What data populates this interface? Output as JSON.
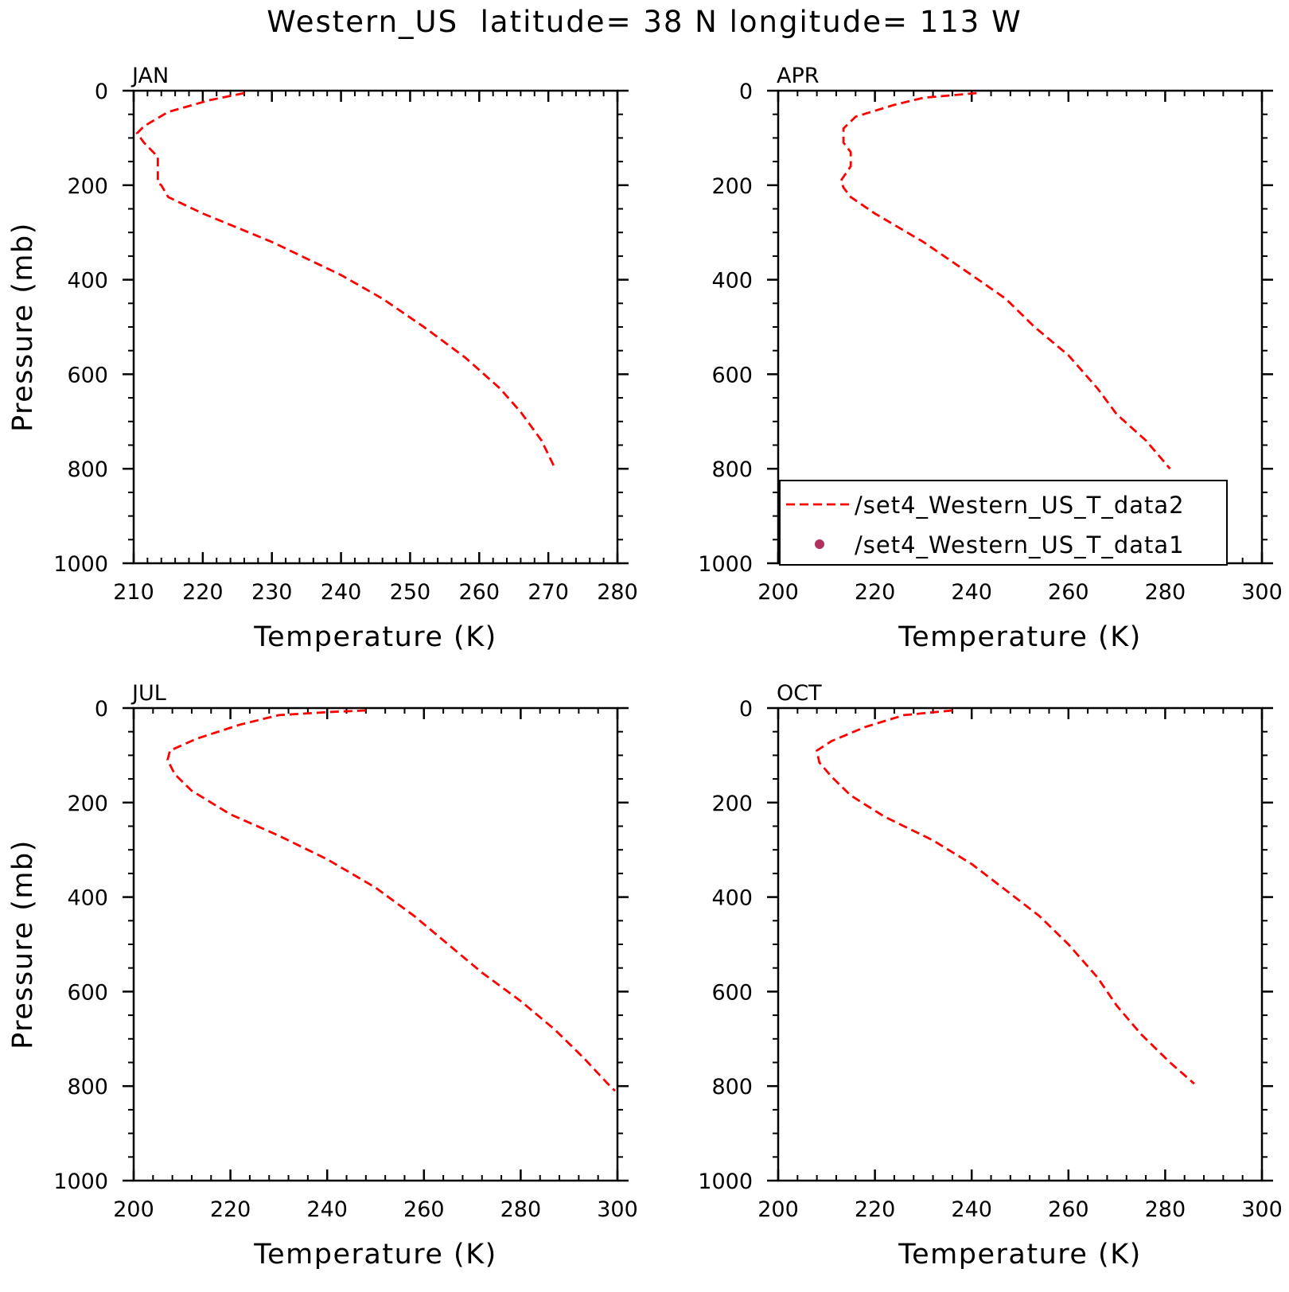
{
  "figure_title": "Western_US  latitude= 38 N longitude= 113 W",
  "chart_data": [
    {
      "type": "line",
      "title": "JAN",
      "xlabel": "Temperature (K)",
      "ylabel": "Pressure (mb)",
      "xlim": [
        210,
        280
      ],
      "ylim": [
        0,
        1000
      ],
      "y_inverted": true,
      "xticks": [
        210,
        220,
        230,
        240,
        250,
        260,
        270,
        280
      ],
      "yticks": [
        0,
        200,
        400,
        600,
        800,
        1000
      ],
      "series": [
        {
          "name": "/set4_Western_US_T_data2",
          "style": "dashed",
          "color": "#ff0000",
          "points": [
            [
              226,
              5
            ],
            [
              221,
              20
            ],
            [
              215,
              45
            ],
            [
              211.5,
              75
            ],
            [
              210.5,
              90
            ],
            [
              211.5,
              110
            ],
            [
              213.5,
              140
            ],
            [
              213.5,
              195
            ],
            [
              214,
              200
            ],
            [
              215,
              225
            ],
            [
              220,
              260
            ],
            [
              230,
              320
            ],
            [
              240,
              390
            ],
            [
              246,
              440
            ],
            [
              252,
              500
            ],
            [
              258,
              565
            ],
            [
              263,
              630
            ],
            [
              266,
              680
            ],
            [
              269,
              740
            ],
            [
              271,
              800
            ]
          ]
        }
      ]
    },
    {
      "type": "line",
      "title": "APR",
      "xlabel": "Temperature (K)",
      "ylabel": "",
      "xlim": [
        200,
        300
      ],
      "ylim": [
        0,
        1000
      ],
      "y_inverted": true,
      "xticks": [
        200,
        220,
        240,
        260,
        280,
        300
      ],
      "yticks": [
        0,
        200,
        400,
        600,
        800,
        1000
      ],
      "legend_position": "bottom-right",
      "series": [
        {
          "name": "/set4_Western_US_T_data2",
          "style": "dashed",
          "color": "#ff0000",
          "points": [
            [
              241,
              5
            ],
            [
              230,
              15
            ],
            [
              224,
              30
            ],
            [
              216,
              55
            ],
            [
              213.5,
              80
            ],
            [
              213.5,
              110
            ],
            [
              215,
              130
            ],
            [
              215,
              160
            ],
            [
              213,
              190
            ],
            [
              213.5,
              205
            ],
            [
              215,
              225
            ],
            [
              220,
              260
            ],
            [
              230,
              320
            ],
            [
              240,
              390
            ],
            [
              247,
              440
            ],
            [
              253,
              500
            ],
            [
              260,
              560
            ],
            [
              266,
              630
            ],
            [
              270,
              685
            ],
            [
              276,
              740
            ],
            [
              281,
              800
            ]
          ]
        },
        {
          "name": "/set4_Western_US_T_data1",
          "style": "marker",
          "color": "#b03060",
          "points": []
        }
      ]
    },
    {
      "type": "line",
      "title": "JUL",
      "xlabel": "Temperature (K)",
      "ylabel": "Pressure (mb)",
      "xlim": [
        200,
        300
      ],
      "ylim": [
        0,
        1000
      ],
      "y_inverted": true,
      "xticks": [
        200,
        220,
        240,
        260,
        280,
        300
      ],
      "yticks": [
        0,
        200,
        400,
        600,
        800,
        1000
      ],
      "series": [
        {
          "name": "/set4_Western_US_T_data2",
          "style": "dashed",
          "color": "#ff0000",
          "points": [
            [
              248,
              5
            ],
            [
              241,
              8
            ],
            [
              230,
              15
            ],
            [
              222,
              35
            ],
            [
              213,
              65
            ],
            [
              207.5,
              90
            ],
            [
              207,
              110
            ],
            [
              208.5,
              140
            ],
            [
              212,
              175
            ],
            [
              220,
              225
            ],
            [
              230,
              270
            ],
            [
              240,
              320
            ],
            [
              250,
              380
            ],
            [
              258,
              440
            ],
            [
              265,
              500
            ],
            [
              272,
              560
            ],
            [
              280,
              620
            ],
            [
              287,
              680
            ],
            [
              293,
              740
            ],
            [
              298,
              795
            ],
            [
              299.5,
              810
            ]
          ]
        }
      ]
    },
    {
      "type": "line",
      "title": "OCT",
      "xlabel": "Temperature (K)",
      "ylabel": "",
      "xlim": [
        200,
        300
      ],
      "ylim": [
        0,
        1000
      ],
      "y_inverted": true,
      "xticks": [
        200,
        220,
        240,
        260,
        280,
        300
      ],
      "yticks": [
        0,
        200,
        400,
        600,
        800,
        1000
      ],
      "series": [
        {
          "name": "/set4_Western_US_T_data2",
          "style": "dashed",
          "color": "#ff0000",
          "points": [
            [
              236,
              5
            ],
            [
              226,
              15
            ],
            [
              218,
              40
            ],
            [
              211,
              70
            ],
            [
              208,
              90
            ],
            [
              208.5,
              115
            ],
            [
              211,
              145
            ],
            [
              215,
              185
            ],
            [
              222,
              230
            ],
            [
              232,
              280
            ],
            [
              240,
              330
            ],
            [
              247,
              385
            ],
            [
              254,
              440
            ],
            [
              260,
              500
            ],
            [
              266,
              570
            ],
            [
              270,
              630
            ],
            [
              275,
              690
            ],
            [
              281,
              750
            ],
            [
              286,
              795
            ]
          ]
        }
      ]
    }
  ]
}
